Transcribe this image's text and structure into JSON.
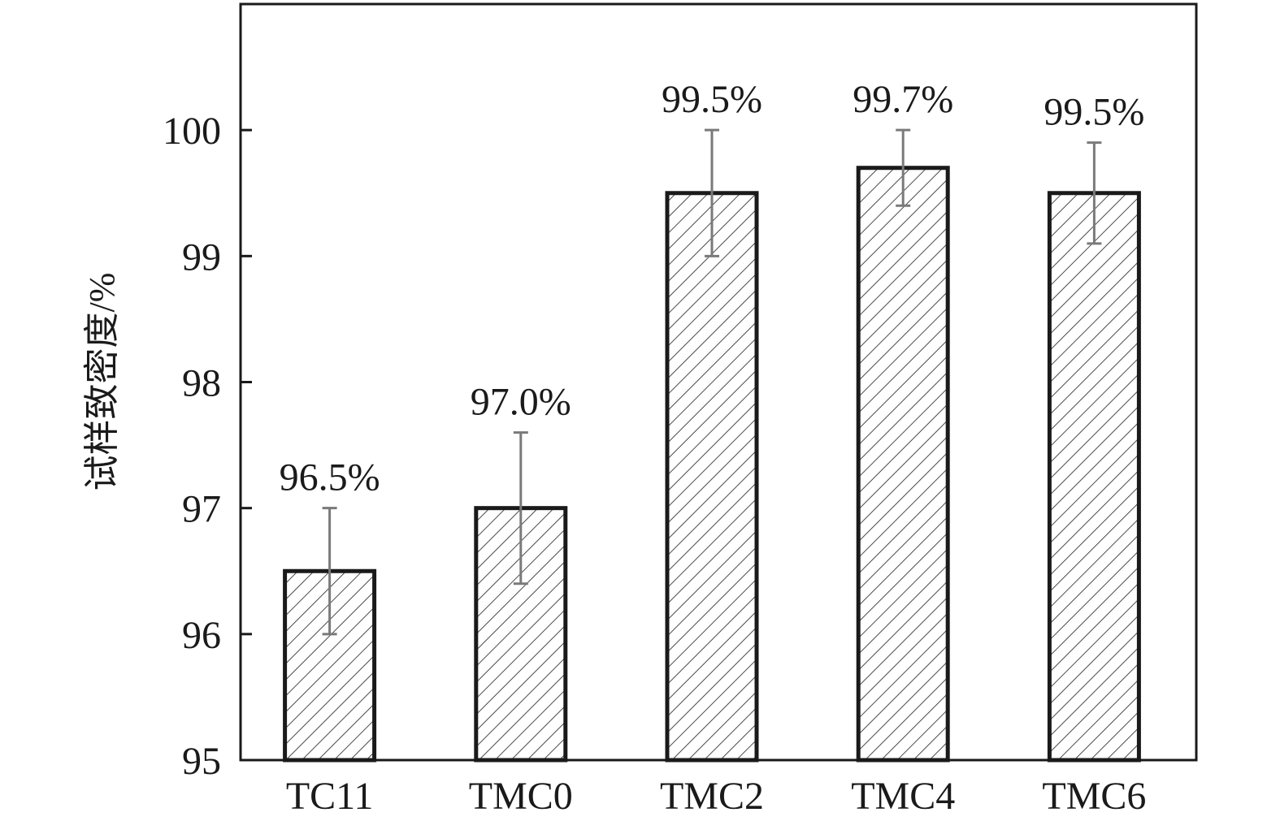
{
  "chart_data": {
    "type": "bar",
    "title": "",
    "xlabel": "",
    "ylabel": "试样致密度/%",
    "ylim": [
      95,
      101
    ],
    "yticks": [
      95,
      96,
      97,
      98,
      99,
      100
    ],
    "grid": false,
    "legend": "none",
    "categories": [
      "TC11",
      "TMC0",
      "TMC2",
      "TMC4",
      "TMC6"
    ],
    "values": [
      96.5,
      97.0,
      99.5,
      99.7,
      99.5
    ],
    "error_low": [
      96.0,
      96.4,
      99.0,
      99.4,
      99.1
    ],
    "error_high": [
      97.0,
      97.6,
      100.0,
      100.0,
      99.9
    ],
    "data_labels": [
      "96.5%",
      "97.0%",
      "99.5%",
      "99.7%",
      "99.5%"
    ],
    "bar_fill": "hatched",
    "colors": {
      "bar_edge": "#1a1a1a",
      "hatch": "#4a4a4a",
      "error_bar": "#7a7a7a",
      "axis": "#1a1a1a"
    }
  }
}
